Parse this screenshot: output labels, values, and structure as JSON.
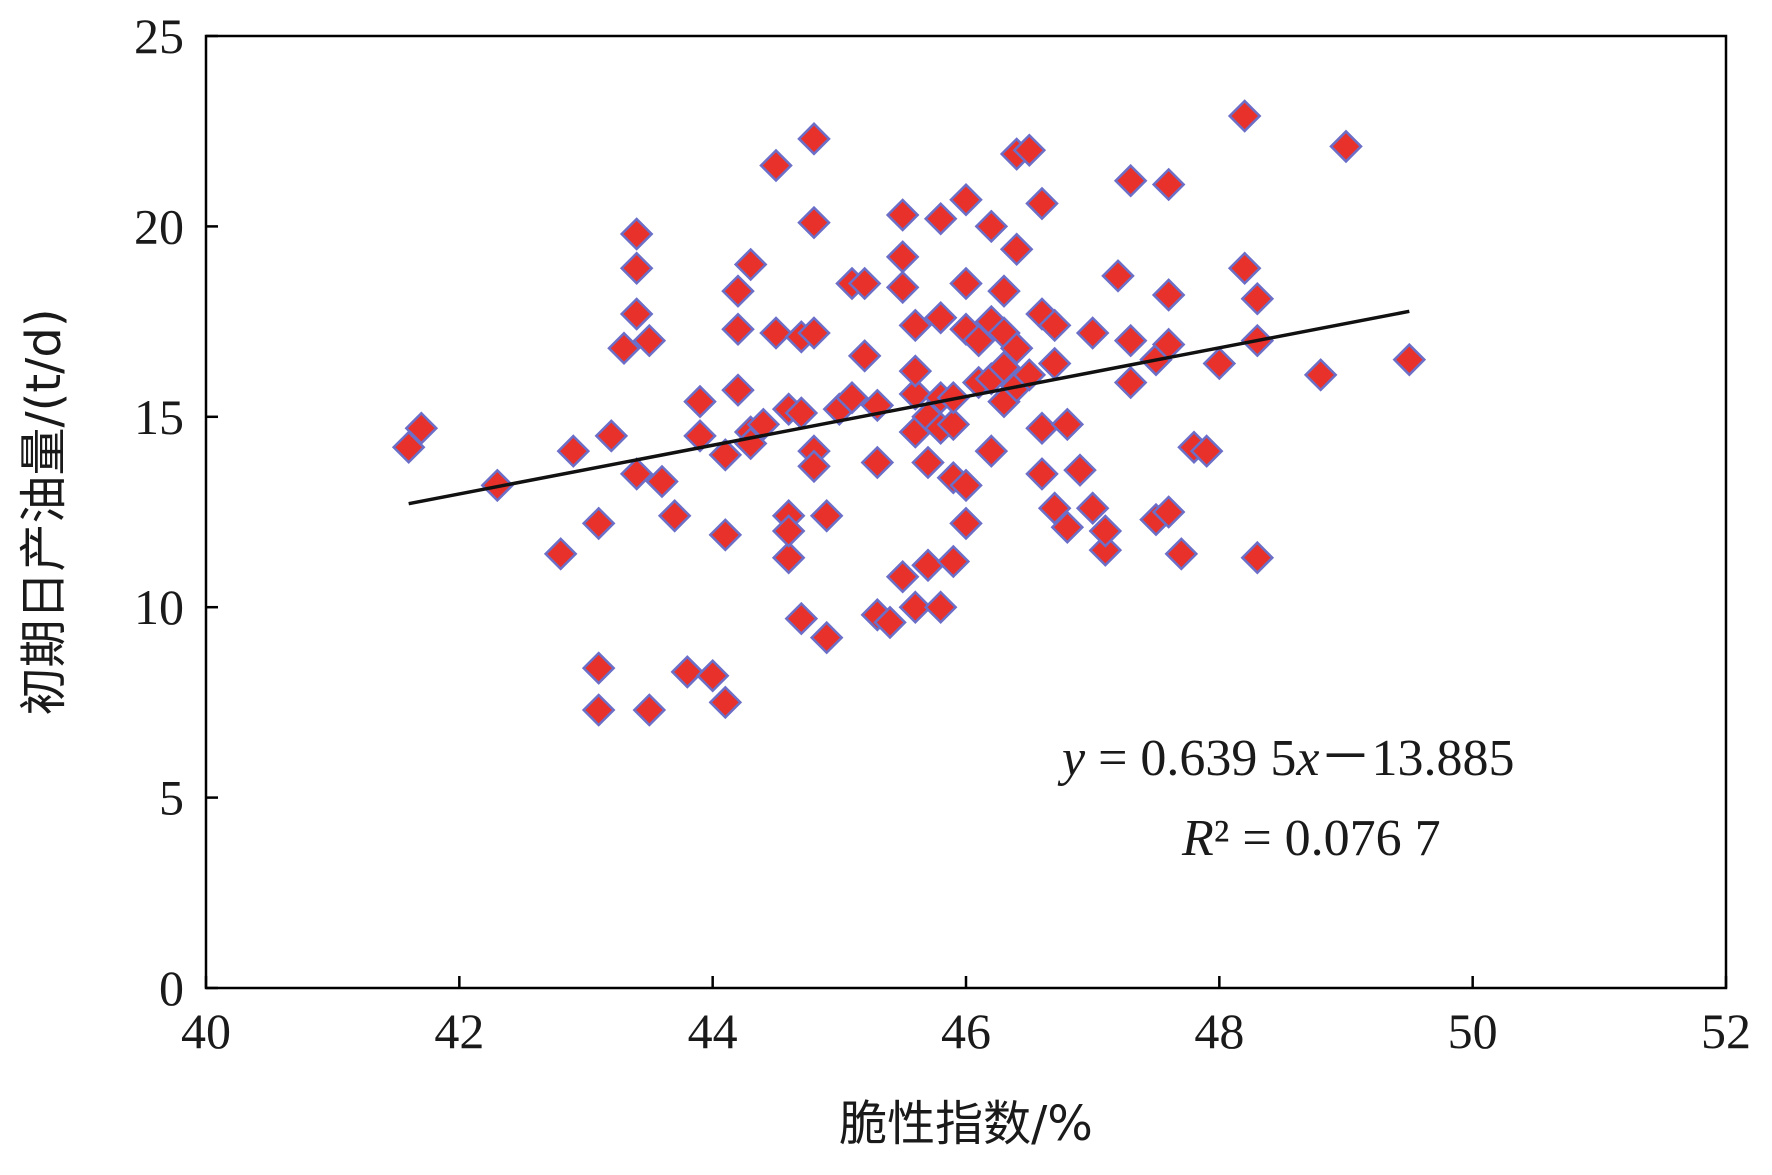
{
  "chart_data": {
    "type": "scatter",
    "xlabel": "脆性指数/%",
    "ylabel": "初期日产油量/(t/d)",
    "xlim": [
      40,
      52
    ],
    "ylim": [
      0,
      25
    ],
    "x_ticks": [
      "40",
      "42",
      "44",
      "46",
      "48",
      "50",
      "52"
    ],
    "y_ticks": [
      "0",
      "5",
      "10",
      "15",
      "20",
      "25"
    ],
    "grid": false,
    "legend": "none",
    "marker": "diamond",
    "marker_color": "#e8312b",
    "marker_edge_color": "#6b6fc8",
    "series": [
      {
        "points": [
          [
            41.6,
            14.2
          ],
          [
            41.7,
            14.7
          ],
          [
            42.3,
            13.2
          ],
          [
            42.8,
            11.4
          ],
          [
            42.9,
            14.1
          ],
          [
            43.1,
            12.2
          ],
          [
            43.1,
            8.4
          ],
          [
            43.1,
            7.3
          ],
          [
            43.2,
            14.5
          ],
          [
            43.3,
            16.8
          ],
          [
            43.4,
            13.5
          ],
          [
            43.4,
            17.7
          ],
          [
            43.4,
            18.9
          ],
          [
            43.4,
            19.8
          ],
          [
            43.5,
            17.0
          ],
          [
            43.5,
            7.3
          ],
          [
            43.6,
            13.3
          ],
          [
            43.7,
            12.4
          ],
          [
            43.8,
            8.3
          ],
          [
            43.9,
            15.4
          ],
          [
            43.9,
            14.5
          ],
          [
            44.0,
            8.2
          ],
          [
            44.1,
            7.5
          ],
          [
            44.1,
            11.9
          ],
          [
            44.1,
            14.0
          ],
          [
            44.2,
            15.7
          ],
          [
            44.2,
            18.3
          ],
          [
            44.2,
            17.3
          ],
          [
            44.3,
            19.0
          ],
          [
            44.3,
            14.6
          ],
          [
            44.3,
            14.3
          ],
          [
            44.4,
            14.8
          ],
          [
            44.5,
            17.2
          ],
          [
            44.5,
            21.6
          ],
          [
            44.6,
            15.2
          ],
          [
            44.6,
            11.3
          ],
          [
            44.6,
            12.4
          ],
          [
            44.6,
            12.0
          ],
          [
            44.7,
            17.1
          ],
          [
            44.7,
            9.7
          ],
          [
            44.7,
            15.1
          ],
          [
            44.8,
            17.2
          ],
          [
            44.8,
            22.3
          ],
          [
            44.8,
            20.1
          ],
          [
            44.8,
            14.1
          ],
          [
            44.8,
            13.7
          ],
          [
            44.9,
            12.4
          ],
          [
            44.9,
            9.2
          ],
          [
            45.0,
            15.2
          ],
          [
            45.1,
            18.5
          ],
          [
            45.1,
            15.5
          ],
          [
            45.2,
            16.6
          ],
          [
            45.2,
            18.5
          ],
          [
            45.3,
            9.8
          ],
          [
            45.3,
            13.8
          ],
          [
            45.3,
            15.3
          ],
          [
            45.4,
            9.6
          ],
          [
            45.5,
            10.8
          ],
          [
            45.5,
            18.4
          ],
          [
            45.5,
            19.2
          ],
          [
            45.5,
            20.3
          ],
          [
            45.6,
            15.6
          ],
          [
            45.6,
            16.2
          ],
          [
            45.6,
            17.4
          ],
          [
            45.6,
            14.6
          ],
          [
            45.6,
            10.0
          ],
          [
            45.7,
            11.1
          ],
          [
            45.7,
            13.8
          ],
          [
            45.7,
            15.0
          ],
          [
            45.8,
            15.5
          ],
          [
            45.8,
            14.7
          ],
          [
            45.8,
            10.0
          ],
          [
            45.8,
            17.6
          ],
          [
            45.8,
            20.2
          ],
          [
            45.9,
            13.4
          ],
          [
            45.9,
            11.2
          ],
          [
            45.9,
            14.8
          ],
          [
            45.9,
            15.5
          ],
          [
            46.0,
            13.2
          ],
          [
            46.0,
            12.2
          ],
          [
            46.0,
            18.5
          ],
          [
            46.0,
            20.7
          ],
          [
            46.0,
            17.3
          ],
          [
            46.1,
            17.0
          ],
          [
            46.1,
            15.9
          ],
          [
            46.2,
            14.1
          ],
          [
            46.2,
            20.0
          ],
          [
            46.2,
            17.5
          ],
          [
            46.2,
            16.0
          ],
          [
            46.3,
            18.3
          ],
          [
            46.3,
            15.4
          ],
          [
            46.3,
            16.3
          ],
          [
            46.3,
            17.2
          ],
          [
            46.4,
            16.8
          ],
          [
            46.4,
            15.8
          ],
          [
            46.4,
            21.9
          ],
          [
            46.4,
            19.4
          ],
          [
            46.5,
            22.0
          ],
          [
            46.5,
            16.1
          ],
          [
            46.6,
            20.6
          ],
          [
            46.6,
            17.7
          ],
          [
            46.6,
            13.5
          ],
          [
            46.6,
            14.7
          ],
          [
            46.7,
            17.4
          ],
          [
            46.7,
            16.4
          ],
          [
            46.7,
            12.6
          ],
          [
            46.8,
            12.1
          ],
          [
            46.8,
            14.8
          ],
          [
            46.9,
            13.6
          ],
          [
            47.0,
            12.6
          ],
          [
            47.0,
            17.2
          ],
          [
            47.1,
            11.5
          ],
          [
            47.1,
            12.0
          ],
          [
            47.2,
            18.7
          ],
          [
            47.3,
            15.9
          ],
          [
            47.3,
            17.0
          ],
          [
            47.3,
            21.2
          ],
          [
            47.5,
            12.3
          ],
          [
            47.5,
            16.5
          ],
          [
            47.6,
            21.1
          ],
          [
            47.6,
            12.5
          ],
          [
            47.6,
            16.9
          ],
          [
            47.6,
            18.2
          ],
          [
            47.7,
            11.4
          ],
          [
            47.8,
            14.2
          ],
          [
            47.9,
            14.1
          ],
          [
            48.0,
            16.4
          ],
          [
            48.2,
            22.9
          ],
          [
            48.2,
            18.9
          ],
          [
            48.3,
            18.1
          ],
          [
            48.3,
            11.3
          ],
          [
            48.3,
            17.0
          ],
          [
            48.8,
            16.1
          ],
          [
            49.0,
            22.1
          ],
          [
            49.5,
            16.5
          ]
        ]
      }
    ],
    "trendline": {
      "slope": 0.6395,
      "intercept": -13.885,
      "x_range": [
        41.6,
        49.5
      ],
      "color": "#111111"
    },
    "annotations": {
      "equation_y": "y",
      "equation_mid": " = 0.639 5",
      "equation_x": "x",
      "equation_tail": "－13.885",
      "r2_label": "R",
      "r2_rest": "² = 0.076 7"
    }
  }
}
